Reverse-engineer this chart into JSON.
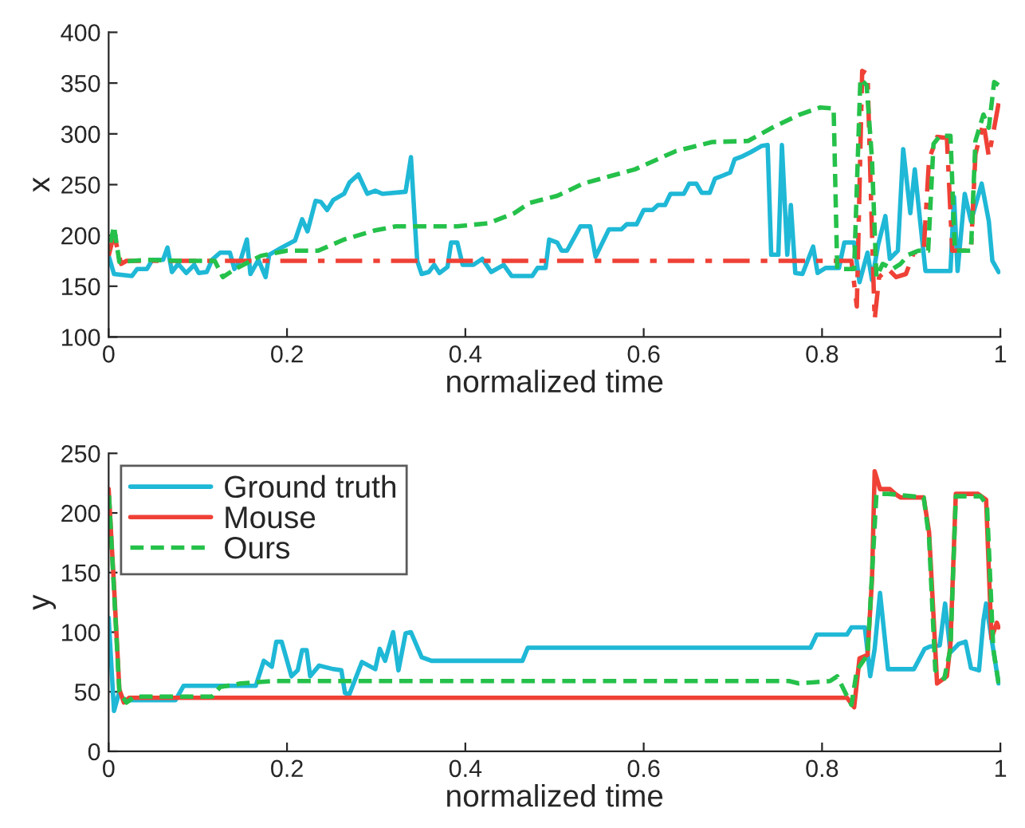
{
  "chart_data": [
    {
      "type": "line",
      "xlabel": "normalized time",
      "ylabel": "x",
      "xlim": [
        0,
        1
      ],
      "xticks": [
        0,
        0.2,
        0.4,
        0.6,
        0.8,
        1
      ],
      "ylim": [
        100,
        400
      ],
      "yticks": [
        100,
        150,
        200,
        250,
        300,
        350,
        400
      ],
      "grid": false,
      "legend": false,
      "series": [
        {
          "color": "#1fb8d6",
          "line_style": "solid",
          "x": [
            0,
            0.006,
            0.026,
            0.032,
            0.043,
            0.049,
            0.061,
            0.066,
            0.071,
            0.078,
            0.087,
            0.096,
            0.101,
            0.11,
            0.116,
            0.125,
            0.136,
            0.141,
            0.148,
            0.155,
            0.159,
            0.168,
            0.176,
            0.18,
            0.194,
            0.209,
            0.217,
            0.223,
            0.232,
            0.238,
            0.245,
            0.252,
            0.264,
            0.27,
            0.28,
            0.29,
            0.299,
            0.307,
            0.333,
            0.339,
            0.346,
            0.351,
            0.359,
            0.365,
            0.371,
            0.38,
            0.384,
            0.391,
            0.397,
            0.409,
            0.419,
            0.429,
            0.443,
            0.452,
            0.475,
            0.481,
            0.49,
            0.494,
            0.503,
            0.508,
            0.514,
            0.529,
            0.54,
            0.546,
            0.561,
            0.575,
            0.581,
            0.592,
            0.6,
            0.61,
            0.616,
            0.624,
            0.63,
            0.645,
            0.651,
            0.659,
            0.665,
            0.674,
            0.68,
            0.689,
            0.697,
            0.702,
            0.711,
            0.72,
            0.732,
            0.739,
            0.743,
            0.751,
            0.755,
            0.761,
            0.765,
            0.77,
            0.778,
            0.79,
            0.795,
            0.804,
            0.819,
            0.825,
            0.836,
            0.842,
            0.851,
            0.856,
            0.863,
            0.871,
            0.876,
            0.885,
            0.891,
            0.899,
            0.904,
            0.91,
            0.916,
            0.944,
            0.948,
            0.952,
            0.96,
            0.967,
            0.979,
            0.987,
            0.991,
            0.998
          ],
          "values": [
            180,
            162,
            160,
            167,
            167,
            176,
            176,
            188,
            164,
            172,
            163,
            171,
            163,
            164,
            176,
            183,
            183,
            167,
            176,
            196,
            162,
            176,
            159,
            181,
            188,
            195,
            216,
            204,
            234,
            233,
            225,
            235,
            241,
            252,
            260,
            241,
            244,
            241,
            243,
            277,
            175,
            162,
            164,
            171,
            163,
            169,
            193,
            193,
            171,
            171,
            177,
            164,
            171,
            160,
            160,
            168,
            168,
            196,
            193,
            185,
            185,
            209,
            209,
            179,
            206,
            206,
            211,
            211,
            225,
            225,
            230,
            230,
            241,
            241,
            251,
            251,
            242,
            242,
            256,
            259,
            262,
            275,
            278,
            282,
            288,
            289,
            181,
            181,
            289,
            181,
            230,
            163,
            162,
            189,
            163,
            168,
            168,
            193,
            193,
            154,
            183,
            156,
            191,
            219,
            177,
            185,
            285,
            222,
            265,
            214,
            165,
            165,
            238,
            165,
            241,
            214,
            251,
            214,
            175,
            164
          ]
        },
        {
          "color": "#ef4136",
          "line_style": "dashdot",
          "x": [
            0,
            0.006,
            0.014,
            0.02,
            0.833,
            0.839,
            0.845,
            0.851,
            0.855,
            0.859,
            0.864,
            0.874,
            0.883,
            0.894,
            0.903,
            0.914,
            0.92,
            0.929,
            0.94,
            0.946,
            0.967,
            0.972,
            0.981,
            0.987,
            0.993,
            0.998
          ],
          "values": [
            180,
            201,
            172,
            175,
            175,
            130,
            362,
            359,
            233,
            117,
            159,
            167,
            159,
            162,
            183,
            185,
            275,
            297,
            296,
            185,
            185,
            280,
            311,
            278,
            306,
            330
          ]
        },
        {
          "color": "#25c14a",
          "line_style": "dashed",
          "x": [
            0,
            0.006,
            0.012,
            0.043,
            0.078,
            0.119,
            0.128,
            0.142,
            0.171,
            0.2,
            0.235,
            0.264,
            0.299,
            0.322,
            0.391,
            0.426,
            0.455,
            0.472,
            0.503,
            0.532,
            0.561,
            0.59,
            0.636,
            0.677,
            0.717,
            0.746,
            0.775,
            0.798,
            0.813,
            0.817,
            0.836,
            0.843,
            0.85,
            0.856,
            0.861,
            0.868,
            0.879,
            0.888,
            0.897,
            0.908,
            0.919,
            0.925,
            0.932,
            0.944,
            0.949,
            0.967,
            0.972,
            0.981,
            0.987,
            0.993,
            0.998
          ],
          "values": [
            185,
            209,
            174,
            176,
            175,
            175,
            159,
            167,
            180,
            185,
            185,
            196,
            205,
            209,
            209,
            212,
            222,
            232,
            239,
            251,
            258,
            265,
            283,
            292,
            293,
            307,
            319,
            326,
            325,
            167,
            167,
            354,
            348,
            275,
            159,
            172,
            167,
            172,
            181,
            185,
            185,
            290,
            298,
            298,
            185,
            185,
            293,
            319,
            306,
            351,
            348
          ]
        }
      ]
    },
    {
      "type": "line",
      "xlabel": "normalized time",
      "ylabel": "y",
      "xlim": [
        0,
        1
      ],
      "xticks": [
        0,
        0.2,
        0.4,
        0.6,
        0.8,
        1
      ],
      "ylim": [
        0,
        250
      ],
      "yticks": [
        0,
        50,
        100,
        150,
        200,
        250
      ],
      "grid": false,
      "legend": "top left",
      "series": [
        {
          "name": "Ground truth",
          "color": "#1fb8d6",
          "line_style": "solid",
          "x": [
            0,
            0.006,
            0.012,
            0.017,
            0.075,
            0.084,
            0.165,
            0.174,
            0.183,
            0.188,
            0.194,
            0.205,
            0.212,
            0.217,
            0.222,
            0.226,
            0.236,
            0.252,
            0.261,
            0.265,
            0.27,
            0.284,
            0.299,
            0.304,
            0.31,
            0.319,
            0.325,
            0.333,
            0.339,
            0.351,
            0.362,
            0.464,
            0.47,
            0.787,
            0.794,
            0.828,
            0.833,
            0.848,
            0.854,
            0.859,
            0.865,
            0.874,
            0.903,
            0.915,
            0.921,
            0.932,
            0.938,
            0.944,
            0.953,
            0.961,
            0.967,
            0.976,
            0.981,
            0.984,
            0.99,
            0.998
          ],
          "values": [
            112,
            34,
            50,
            43,
            43,
            55,
            55,
            76,
            71,
            92,
            92,
            63,
            68,
            85,
            85,
            63,
            72,
            69,
            68,
            49,
            48,
            75,
            69,
            86,
            76,
            100,
            68,
            99,
            100,
            79,
            76,
            76,
            87,
            87,
            98,
            98,
            104,
            104,
            63,
            86,
            133,
            69,
            69,
            86,
            88,
            89,
            124,
            83,
            90,
            92,
            70,
            68,
            110,
            124,
            95,
            57
          ]
        },
        {
          "name": "Mouse",
          "color": "#ef4136",
          "line_style": "solid",
          "x": [
            0,
            0.006,
            0.012,
            0.017,
            0.023,
            0.828,
            0.836,
            0.842,
            0.851,
            0.856,
            0.859,
            0.865,
            0.876,
            0.882,
            0.888,
            0.914,
            0.92,
            0.929,
            0.94,
            0.944,
            0.95,
            0.958,
            0.975,
            0.984,
            0.99,
            0.996,
            0.998
          ],
          "values": [
            220,
            139,
            52,
            41,
            45,
            45,
            37,
            78,
            81,
            144,
            235,
            220,
            220,
            216,
            213,
            213,
            184,
            57,
            63,
            90,
            216,
            216,
            216,
            211,
            95,
            108,
            104
          ]
        },
        {
          "name": "Ours",
          "color": "#25c14a",
          "line_style": "dashed",
          "x": [
            0,
            0.006,
            0.012,
            0.02,
            0.029,
            0.116,
            0.125,
            0.148,
            0.183,
            0.507,
            0.763,
            0.774,
            0.809,
            0.817,
            0.833,
            0.839,
            0.851,
            0.856,
            0.861,
            0.874,
            0.914,
            0.92,
            0.927,
            0.937,
            0.944,
            0.95,
            0.978,
            0.985,
            0.992,
            0.998
          ],
          "values": [
            220,
            135,
            50,
            41,
            46,
            46,
            54,
            57,
            59,
            59,
            59,
            57,
            59,
            63,
            39,
            68,
            81,
            148,
            216,
            216,
            213,
            179,
            68,
            61,
            86,
            214,
            214,
            206,
            86,
            57
          ]
        }
      ]
    }
  ]
}
